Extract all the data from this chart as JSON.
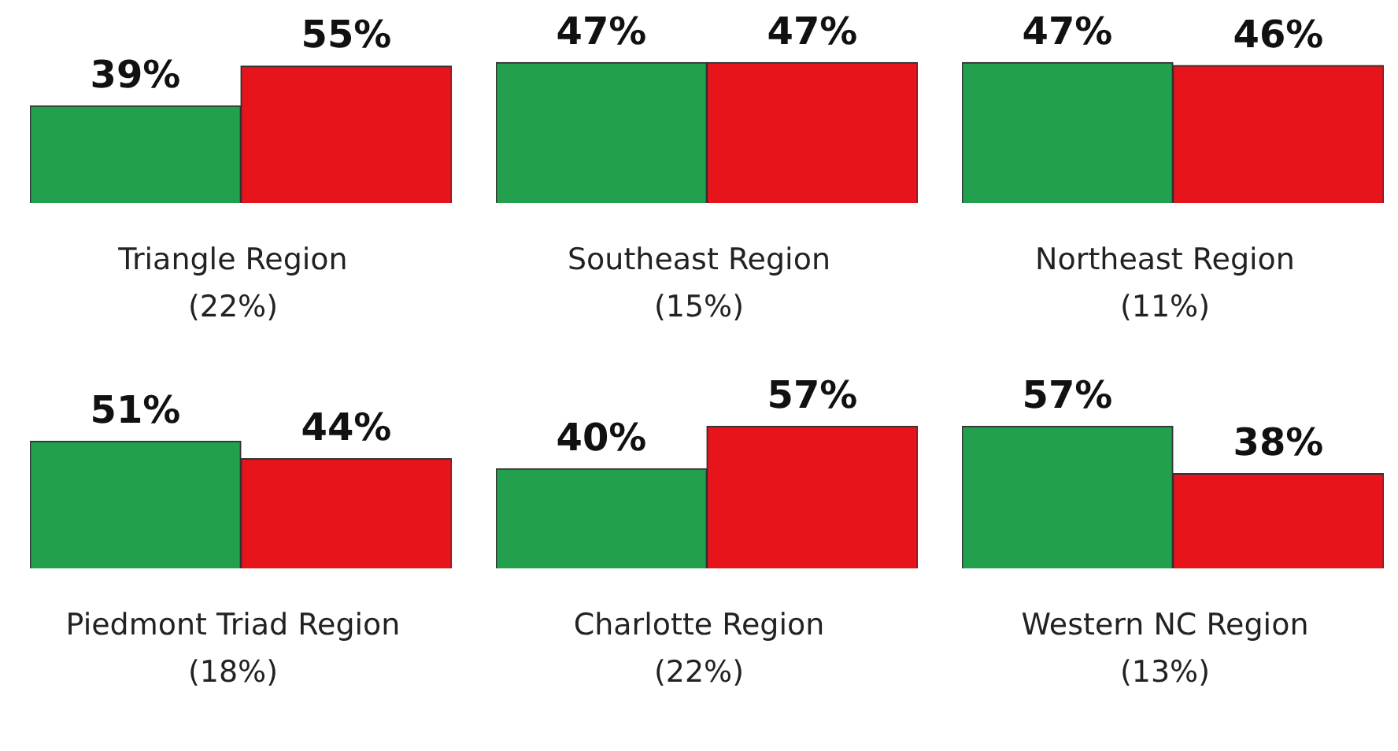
{
  "chart_data": [
    {
      "type": "bar",
      "categories": [
        null,
        null
      ],
      "values": [
        39,
        55
      ],
      "colors": [
        "#23a04e",
        "#e8141b"
      ],
      "value_labels": [
        "39%",
        "55%"
      ],
      "xlabel": "Triangle Region",
      "annotations": [
        "(22%)"
      ],
      "legend": false,
      "tick_labels": false
    },
    {
      "type": "bar",
      "categories": [
        null,
        null
      ],
      "values": [
        47,
        47
      ],
      "colors": [
        "#23a04e",
        "#e8141b"
      ],
      "value_labels": [
        "47%",
        "47%"
      ],
      "xlabel": "Southeast Region",
      "annotations": [
        "(15%)"
      ],
      "legend": false,
      "tick_labels": false
    },
    {
      "type": "bar",
      "categories": [
        null,
        null
      ],
      "values": [
        47,
        46
      ],
      "colors": [
        "#23a04e",
        "#e8141b"
      ],
      "value_labels": [
        "47%",
        "46%"
      ],
      "xlabel": "Northeast Region",
      "annotations": [
        "(11%)"
      ],
      "legend": false,
      "tick_labels": false
    },
    {
      "type": "bar",
      "categories": [
        null,
        null
      ],
      "values": [
        51,
        44
      ],
      "colors": [
        "#23a04e",
        "#e8141b"
      ],
      "value_labels": [
        "51%",
        "44%"
      ],
      "xlabel": "Piedmont Triad Region",
      "annotations": [
        "(18%)"
      ],
      "legend": false,
      "tick_labels": false
    },
    {
      "type": "bar",
      "categories": [
        null,
        null
      ],
      "values": [
        40,
        57
      ],
      "colors": [
        "#23a04e",
        "#e8141b"
      ],
      "value_labels": [
        "40%",
        "57%"
      ],
      "xlabel": "Charlotte Region",
      "annotations": [
        "(22%)"
      ],
      "legend": false,
      "tick_labels": false
    },
    {
      "type": "bar",
      "categories": [
        null,
        null
      ],
      "values": [
        57,
        38
      ],
      "colors": [
        "#23a04e",
        "#e8141b"
      ],
      "value_labels": [
        "57%",
        "38%"
      ],
      "xlabel": "Western NC Region",
      "annotations": [
        "(13%)"
      ],
      "legend": false,
      "tick_labels": false
    }
  ]
}
